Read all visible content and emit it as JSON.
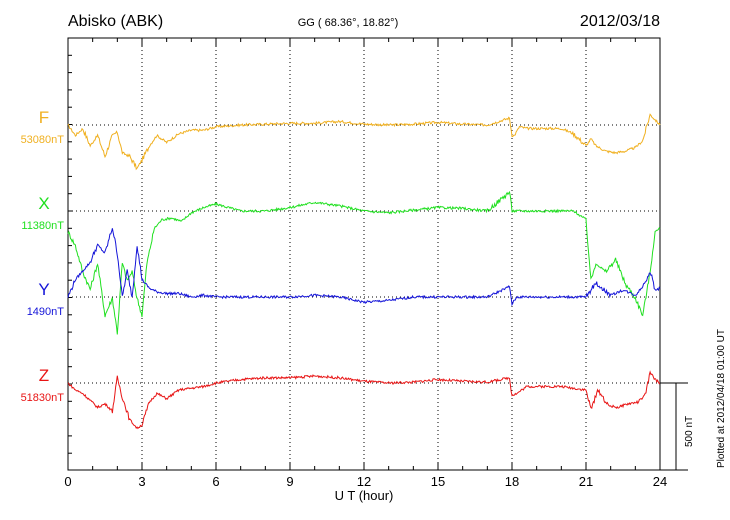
{
  "header": {
    "station": "Abisko (ABK)",
    "coords": "GG ( 68.36°,  18.82°)",
    "date": "2012/03/18"
  },
  "plotted_note": "Plotted at 2012/04/18 01:00 UT",
  "scale_label": "500 nT",
  "chart_data": {
    "type": "line",
    "xlabel": "U T (hour)",
    "ylabel": "",
    "xlim": [
      0,
      24
    ],
    "x_ticks": [
      "0",
      "3",
      "6",
      "9",
      "12",
      "15",
      "18",
      "21",
      "24"
    ],
    "grid": "dotted vertical at each 3 h, dotted horizontal at each series baseline",
    "scale_bar_nT": 500,
    "series": [
      {
        "name": "F",
        "baseline_label": "53080nT",
        "color": "#F0B020",
        "x": [
          0,
          0.3,
          0.6,
          0.9,
          1.2,
          1.5,
          1.8,
          2.0,
          2.2,
          2.5,
          2.8,
          3.0,
          3.3,
          3.6,
          4.0,
          4.5,
          5.0,
          5.5,
          6.0,
          7,
          8,
          9,
          10,
          11,
          12,
          13,
          14,
          15,
          16,
          17,
          17.9,
          18.0,
          18.1,
          18.3,
          18.6,
          19,
          20,
          20.5,
          21.0,
          21.2,
          21.4,
          21.8,
          22.2,
          22.6,
          23,
          23.3,
          23.6,
          23.8,
          24
        ],
        "values": [
          0,
          -60,
          -20,
          -120,
          -60,
          -180,
          -60,
          -40,
          -160,
          -180,
          -250,
          -200,
          -120,
          -60,
          -100,
          -50,
          -30,
          -30,
          -10,
          0,
          5,
          10,
          10,
          20,
          5,
          0,
          5,
          15,
          5,
          0,
          40,
          -60,
          -60,
          -10,
          -20,
          -20,
          -20,
          -50,
          -120,
          -80,
          -120,
          -150,
          -160,
          -150,
          -130,
          -90,
          60,
          30,
          0
        ]
      },
      {
        "name": "X",
        "baseline_label": "11380nT",
        "color": "#20E020",
        "x": [
          0,
          0.3,
          0.6,
          0.9,
          1.2,
          1.5,
          1.8,
          2.0,
          2.2,
          2.4,
          2.6,
          2.8,
          3.0,
          3.2,
          3.5,
          3.8,
          4.2,
          4.6,
          5.0,
          5.5,
          6.0,
          7,
          8,
          9,
          10,
          11,
          12,
          13,
          14,
          15,
          16,
          17,
          17.9,
          18.0,
          18.2,
          18.6,
          19,
          20,
          20.5,
          21.0,
          21.2,
          21.4,
          21.8,
          22.2,
          22.6,
          23,
          23.3,
          23.6,
          23.8,
          24
        ],
        "values": [
          -120,
          -200,
          -350,
          -450,
          -300,
          -600,
          -500,
          -700,
          -300,
          -400,
          -350,
          -500,
          -600,
          -300,
          -100,
          -50,
          -40,
          -60,
          -10,
          20,
          40,
          0,
          0,
          20,
          50,
          30,
          0,
          -10,
          5,
          20,
          15,
          0,
          110,
          0,
          0,
          0,
          0,
          0,
          0,
          -50,
          -400,
          -300,
          -350,
          -280,
          -420,
          -500,
          -600,
          -350,
          -120,
          -100
        ]
      },
      {
        "name": "Y",
        "baseline_label": "1490nT",
        "color": "#1414D8",
        "x": [
          0,
          0.3,
          0.6,
          0.9,
          1.2,
          1.5,
          1.8,
          2.0,
          2.2,
          2.4,
          2.6,
          2.8,
          3.0,
          3.3,
          3.6,
          4.0,
          4.5,
          5.0,
          5.5,
          6.0,
          7,
          8,
          9,
          10,
          11,
          12,
          13,
          14,
          15,
          16,
          17,
          17.9,
          18.0,
          18.2,
          18.6,
          19,
          20,
          21,
          21.4,
          22,
          22.5,
          23,
          23.3,
          23.6,
          23.8,
          24
        ],
        "values": [
          0,
          100,
          150,
          200,
          300,
          250,
          400,
          250,
          0,
          150,
          0,
          300,
          100,
          50,
          30,
          20,
          20,
          0,
          10,
          0,
          0,
          0,
          0,
          10,
          0,
          -30,
          -20,
          0,
          0,
          0,
          0,
          60,
          -40,
          0,
          0,
          0,
          0,
          0,
          80,
          10,
          40,
          10,
          60,
          150,
          40,
          50
        ]
      },
      {
        "name": "Z",
        "baseline_label": "51830nT",
        "color": "#E81414",
        "x": [
          0,
          0.3,
          0.6,
          0.9,
          1.2,
          1.5,
          1.8,
          2.0,
          2.2,
          2.5,
          2.8,
          3.0,
          3.3,
          3.6,
          4.0,
          4.5,
          5.0,
          5.5,
          6.0,
          7,
          8,
          9,
          10,
          11,
          12,
          13,
          14,
          15,
          16,
          17,
          17.9,
          18.0,
          18.2,
          18.6,
          19,
          20,
          21.0,
          21.2,
          21.5,
          21.9,
          22.3,
          22.7,
          23.1,
          23.4,
          23.6,
          23.8,
          24
        ],
        "values": [
          0,
          -40,
          -60,
          -100,
          -140,
          -120,
          -160,
          30,
          -80,
          -210,
          -260,
          -240,
          -110,
          -60,
          -90,
          -40,
          -30,
          -20,
          0,
          20,
          30,
          30,
          40,
          30,
          10,
          0,
          5,
          20,
          10,
          5,
          30,
          -70,
          -60,
          -20,
          -20,
          -20,
          -40,
          -150,
          -40,
          -130,
          -140,
          -120,
          -110,
          -70,
          60,
          20,
          0
        ]
      }
    ]
  }
}
